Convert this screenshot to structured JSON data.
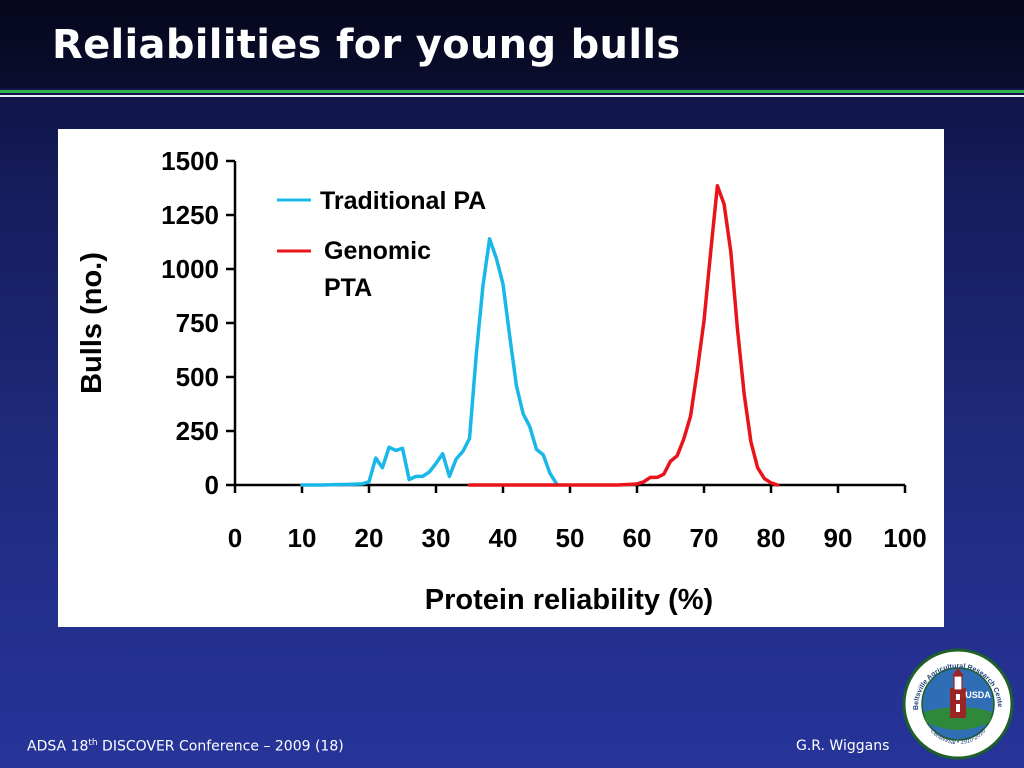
{
  "slide": {
    "title": "Reliabilities for young bulls"
  },
  "footer": {
    "conference_pre": "ADSA 18",
    "conference_sup": "th",
    "conference_post": " DISCOVER Conference – 2009 (18)",
    "author": "G.R. Wiggans"
  },
  "logo": {
    "text_arc": "Beltsville Agricultural Research Center",
    "text_bottom": "Centennial • 1910-2010",
    "badge": "USDA",
    "colors": {
      "ring": "#1f5f2a",
      "sky": "#2f6db5",
      "field": "#2e8a3a",
      "building": "#9b2424"
    }
  },
  "chart_data": {
    "type": "line",
    "xlabel": "Protein reliability (%)",
    "ylabel": "Bulls (no.)",
    "xlim": [
      0,
      100
    ],
    "ylim": [
      0,
      1500
    ],
    "xticks": [
      0,
      10,
      20,
      30,
      40,
      50,
      60,
      70,
      80,
      90,
      100
    ],
    "yticks": [
      0,
      250,
      500,
      750,
      1000,
      1250,
      1500
    ],
    "grid": false,
    "legend_position": "top-left",
    "series": [
      {
        "name": "Traditional PA",
        "color": "#1ab8e8",
        "points": [
          [
            10,
            0
          ],
          [
            13,
            0
          ],
          [
            15,
            2
          ],
          [
            17,
            3
          ],
          [
            19,
            5
          ],
          [
            20,
            15
          ],
          [
            21,
            125
          ],
          [
            22,
            80
          ],
          [
            23,
            175
          ],
          [
            24,
            160
          ],
          [
            25,
            170
          ],
          [
            26,
            25
          ],
          [
            27,
            40
          ],
          [
            28,
            40
          ],
          [
            29,
            60
          ],
          [
            30,
            100
          ],
          [
            31,
            145
          ],
          [
            32,
            40
          ],
          [
            33,
            120
          ],
          [
            34,
            155
          ],
          [
            35,
            215
          ],
          [
            36,
            600
          ],
          [
            37,
            920
          ],
          [
            38,
            1140
          ],
          [
            39,
            1050
          ],
          [
            40,
            930
          ],
          [
            41,
            690
          ],
          [
            42,
            460
          ],
          [
            43,
            330
          ],
          [
            44,
            270
          ],
          [
            45,
            165
          ],
          [
            46,
            140
          ],
          [
            47,
            55
          ],
          [
            48,
            5
          ]
        ]
      },
      {
        "name": "Genomic PTA",
        "label_lines": [
          "Genomic",
          "PTA"
        ],
        "color": "#e8141a",
        "points": [
          [
            35,
            0
          ],
          [
            37,
            0
          ],
          [
            57,
            0
          ],
          [
            59,
            3
          ],
          [
            60,
            5
          ],
          [
            61,
            15
          ],
          [
            62,
            35
          ],
          [
            63,
            35
          ],
          [
            64,
            50
          ],
          [
            65,
            110
          ],
          [
            66,
            135
          ],
          [
            67,
            215
          ],
          [
            68,
            320
          ],
          [
            69,
            530
          ],
          [
            70,
            760
          ],
          [
            71,
            1080
          ],
          [
            72,
            1385
          ],
          [
            73,
            1300
          ],
          [
            74,
            1080
          ],
          [
            75,
            720
          ],
          [
            76,
            420
          ],
          [
            77,
            200
          ],
          [
            78,
            80
          ],
          [
            79,
            30
          ],
          [
            80,
            10
          ],
          [
            81,
            0
          ]
        ]
      }
    ]
  }
}
